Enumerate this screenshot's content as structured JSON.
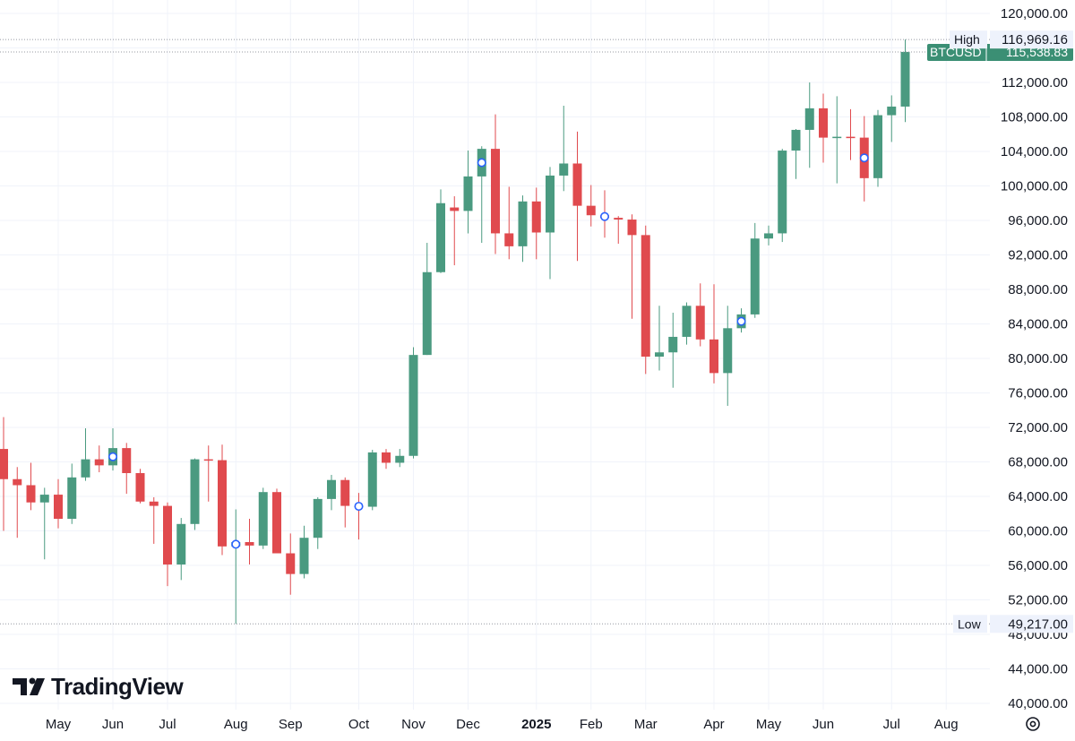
{
  "chart_data": {
    "type": "candlestick",
    "symbol": "BTCUSD",
    "interval": "weekly",
    "ylim": [
      40000,
      120000
    ],
    "y_ticks": [
      40000,
      44000,
      48000,
      52000,
      56000,
      60000,
      64000,
      68000,
      72000,
      76000,
      80000,
      84000,
      88000,
      92000,
      96000,
      100000,
      104000,
      108000,
      112000,
      116000,
      120000
    ],
    "y_tick_labels": [
      "40,000.00",
      "44,000.00",
      "48,000.00",
      "52,000.00",
      "56,000.00",
      "60,000.00",
      "64,000.00",
      "68,000.00",
      "72,000.00",
      "76,000.00",
      "80,000.00",
      "84,000.00",
      "88,000.00",
      "92,000.00",
      "96,000.00",
      "100,000.00",
      "104,000.00",
      "108,000.00",
      "112,000.00",
      "116,000.00",
      "120,000.00"
    ],
    "x_ticks": [
      {
        "label": "May",
        "week": 4,
        "year": false
      },
      {
        "label": "Jun",
        "week": 8,
        "year": false
      },
      {
        "label": "Jul",
        "week": 12,
        "year": false
      },
      {
        "label": "Aug",
        "week": 17,
        "year": false
      },
      {
        "label": "Sep",
        "week": 21,
        "year": false
      },
      {
        "label": "Oct",
        "week": 26,
        "year": false
      },
      {
        "label": "Nov",
        "week": 30,
        "year": false
      },
      {
        "label": "Dec",
        "week": 34,
        "year": false
      },
      {
        "label": "2025",
        "week": 39,
        "year": true
      },
      {
        "label": "Feb",
        "week": 43,
        "year": false
      },
      {
        "label": "Mar",
        "week": 47,
        "year": false
      },
      {
        "label": "Apr",
        "week": 52,
        "year": false
      },
      {
        "label": "May",
        "week": 56,
        "year": false
      },
      {
        "label": "Jun",
        "week": 60,
        "year": false
      },
      {
        "label": "Jul",
        "week": 65,
        "year": false
      },
      {
        "label": "Aug",
        "week": 69,
        "year": false
      }
    ],
    "candles": [
      {
        "o": 69500,
        "h": 73200,
        "l": 60000,
        "c": 66000
      },
      {
        "o": 66000,
        "h": 67400,
        "l": 59200,
        "c": 65300
      },
      {
        "o": 65300,
        "h": 67900,
        "l": 62400,
        "c": 63300
      },
      {
        "o": 63300,
        "h": 65000,
        "l": 56700,
        "c": 64200
      },
      {
        "o": 64200,
        "h": 66000,
        "l": 60300,
        "c": 61400
      },
      {
        "o": 61400,
        "h": 67800,
        "l": 60800,
        "c": 66200
      },
      {
        "o": 66200,
        "h": 71900,
        "l": 65800,
        "c": 68300
      },
      {
        "o": 68300,
        "h": 69900,
        "l": 66800,
        "c": 67600
      },
      {
        "o": 67600,
        "h": 71900,
        "l": 67000,
        "c": 69600
      },
      {
        "o": 69600,
        "h": 70200,
        "l": 64300,
        "c": 66700
      },
      {
        "o": 66700,
        "h": 67200,
        "l": 63200,
        "c": 63400
      },
      {
        "o": 63400,
        "h": 63900,
        "l": 58500,
        "c": 62900
      },
      {
        "o": 62900,
        "h": 63300,
        "l": 53600,
        "c": 56100
      },
      {
        "o": 56100,
        "h": 61500,
        "l": 54300,
        "c": 60800
      },
      {
        "o": 60800,
        "h": 68400,
        "l": 60100,
        "c": 68300
      },
      {
        "o": 68300,
        "h": 69900,
        "l": 63400,
        "c": 68200
      },
      {
        "o": 68200,
        "h": 70000,
        "l": 57200,
        "c": 58200
      },
      {
        "o": 58200,
        "h": 62500,
        "l": 49217,
        "c": 58700
      },
      {
        "o": 58700,
        "h": 61400,
        "l": 56100,
        "c": 58300
      },
      {
        "o": 58300,
        "h": 65000,
        "l": 57900,
        "c": 64500
      },
      {
        "o": 64500,
        "h": 64900,
        "l": 57800,
        "c": 57400
      },
      {
        "o": 57400,
        "h": 59700,
        "l": 52600,
        "c": 55000
      },
      {
        "o": 55000,
        "h": 60600,
        "l": 54500,
        "c": 59200
      },
      {
        "o": 59200,
        "h": 63900,
        "l": 57900,
        "c": 63700
      },
      {
        "o": 63700,
        "h": 66500,
        "l": 62400,
        "c": 65900
      },
      {
        "o": 65900,
        "h": 66200,
        "l": 60400,
        "c": 62900
      },
      {
        "o": 62900,
        "h": 64400,
        "l": 59000,
        "c": 62800
      },
      {
        "o": 62800,
        "h": 69400,
        "l": 62400,
        "c": 69100
      },
      {
        "o": 69100,
        "h": 69500,
        "l": 67200,
        "c": 67900
      },
      {
        "o": 67900,
        "h": 69500,
        "l": 67400,
        "c": 68700
      },
      {
        "o": 68700,
        "h": 81300,
        "l": 68400,
        "c": 80400
      },
      {
        "o": 80400,
        "h": 93400,
        "l": 80400,
        "c": 90000
      },
      {
        "o": 90000,
        "h": 99600,
        "l": 89900,
        "c": 98000
      },
      {
        "o": 97500,
        "h": 98800,
        "l": 90800,
        "c": 97100
      },
      {
        "o": 97100,
        "h": 104100,
        "l": 94500,
        "c": 101100
      },
      {
        "o": 101100,
        "h": 104600,
        "l": 93400,
        "c": 104300
      },
      {
        "o": 104300,
        "h": 108300,
        "l": 92100,
        "c": 94500
      },
      {
        "o": 94500,
        "h": 99900,
        "l": 91500,
        "c": 93000
      },
      {
        "o": 93000,
        "h": 98900,
        "l": 91200,
        "c": 98200
      },
      {
        "o": 98200,
        "h": 99800,
        "l": 91500,
        "c": 94600
      },
      {
        "o": 94600,
        "h": 102200,
        "l": 89200,
        "c": 101200
      },
      {
        "o": 101200,
        "h": 109300,
        "l": 99400,
        "c": 102600
      },
      {
        "o": 102600,
        "h": 106300,
        "l": 91300,
        "c": 97700
      },
      {
        "o": 97700,
        "h": 100100,
        "l": 95300,
        "c": 96600
      },
      {
        "o": 96600,
        "h": 99500,
        "l": 94000,
        "c": 96300
      },
      {
        "o": 96300,
        "h": 96500,
        "l": 93300,
        "c": 96100
      },
      {
        "o": 96100,
        "h": 96700,
        "l": 84600,
        "c": 94300
      },
      {
        "o": 94300,
        "h": 95400,
        "l": 78200,
        "c": 80200
      },
      {
        "o": 80200,
        "h": 86100,
        "l": 78600,
        "c": 80700
      },
      {
        "o": 80700,
        "h": 85300,
        "l": 76600,
        "c": 82500
      },
      {
        "o": 82500,
        "h": 86500,
        "l": 81600,
        "c": 86100
      },
      {
        "o": 86100,
        "h": 88700,
        "l": 81400,
        "c": 82200
      },
      {
        "o": 82200,
        "h": 88600,
        "l": 77100,
        "c": 78300
      },
      {
        "o": 78300,
        "h": 86100,
        "l": 74500,
        "c": 83500
      },
      {
        "o": 83500,
        "h": 85800,
        "l": 83000,
        "c": 85100
      },
      {
        "o": 85100,
        "h": 95700,
        "l": 84700,
        "c": 93900
      },
      {
        "o": 93900,
        "h": 95400,
        "l": 93100,
        "c": 94500
      },
      {
        "o": 94500,
        "h": 104300,
        "l": 93500,
        "c": 104100
      },
      {
        "o": 104100,
        "h": 106600,
        "l": 100800,
        "c": 106500
      },
      {
        "o": 106500,
        "h": 112000,
        "l": 102100,
        "c": 109000
      },
      {
        "o": 109000,
        "h": 110700,
        "l": 102700,
        "c": 105600
      },
      {
        "o": 105600,
        "h": 110400,
        "l": 100300,
        "c": 105700
      },
      {
        "o": 105700,
        "h": 108900,
        "l": 103000,
        "c": 105600
      },
      {
        "o": 105600,
        "h": 108100,
        "l": 98200,
        "c": 100900
      },
      {
        "o": 100900,
        "h": 108800,
        "l": 99900,
        "c": 108200
      },
      {
        "o": 108200,
        "h": 110500,
        "l": 105100,
        "c": 109200
      },
      {
        "o": 109200,
        "h": 116969,
        "l": 107400,
        "c": 115539
      }
    ],
    "event_markers": [
      8,
      17,
      26,
      35,
      44,
      54,
      63
    ],
    "high": {
      "label": "High",
      "value": 116969.16,
      "text": "116,969.16"
    },
    "low": {
      "label": "Low",
      "value": 49217.0,
      "text": "49,217.00"
    },
    "last_price": {
      "label": "BTCUSD",
      "value": 115538.83,
      "text": "115,538.83"
    },
    "colors": {
      "up": "#4a9a80",
      "down": "#e04a4e",
      "grid": "#f0f3fa",
      "text": "#131722",
      "marker": "#2962ff",
      "high_bg": "#eef2fc",
      "price_bg": "#3b8f74"
    }
  },
  "branding": {
    "logo_text": "TradingView",
    "logo_icon": "tradingview-logo-icon"
  },
  "settings_icon": "gear-icon"
}
